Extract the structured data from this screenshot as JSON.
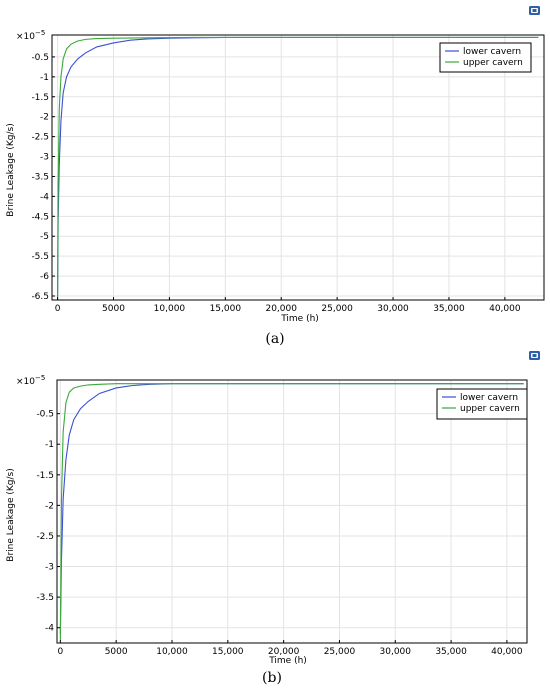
{
  "chart_data": [
    {
      "type": "line",
      "caption": "(a)",
      "xlabel": "Time (h)",
      "ylabel": "Brine Leakage (Kg/s)",
      "y_multiplier": "×10",
      "y_multiplier_exp": "−5",
      "xlim": [
        -500,
        43500
      ],
      "ylim": [
        -6.6,
        0.05
      ],
      "x_ticks": [
        0,
        5000,
        10000,
        15000,
        20000,
        25000,
        30000,
        35000,
        40000
      ],
      "x_tick_labels": [
        "0",
        "5000",
        "10,000",
        "15,000",
        "20,000",
        "25,000",
        "30,000",
        "35,000",
        "40,000"
      ],
      "y_ticks": [
        -0.5,
        -1,
        -1.5,
        -2,
        -2.5,
        -3,
        -3.5,
        -4,
        -4.5,
        -5,
        -5.5,
        -6,
        -6.5
      ],
      "y_tick_labels": [
        "-0.5",
        "-1",
        "-1.5",
        "-2",
        "-2.5",
        "-3",
        "-3.5",
        "-4",
        "-4.5",
        "-5",
        "-5.5",
        "-6",
        "-6.5"
      ],
      "grid": true,
      "legend_position": "top-right",
      "series": [
        {
          "name": "lower cavern",
          "color": "#3a4fd6",
          "x": [
            0,
            50,
            150,
            300,
            500,
            800,
            1200,
            1800,
            2500,
            3500,
            5000,
            6500,
            8000,
            10000,
            12000,
            15000,
            20000,
            30000,
            43000
          ],
          "y": [
            -6.5,
            -4.6,
            -3.2,
            -2.1,
            -1.4,
            -1.0,
            -0.75,
            -0.55,
            -0.4,
            -0.25,
            -0.15,
            -0.08,
            -0.05,
            -0.03,
            -0.02,
            -0.01,
            -0.01,
            -0.01,
            -0.01
          ]
        },
        {
          "name": "upper cavern",
          "color": "#3aa83a",
          "x": [
            0,
            50,
            150,
            300,
            500,
            800,
            1200,
            1800,
            2500,
            3500,
            5000,
            8000,
            12000,
            20000,
            30000,
            43000
          ],
          "y": [
            -6.6,
            -3.7,
            -1.8,
            -1.0,
            -0.55,
            -0.3,
            -0.18,
            -0.1,
            -0.06,
            -0.04,
            -0.03,
            -0.02,
            -0.01,
            -0.01,
            -0.01,
            -0.01
          ]
        }
      ]
    },
    {
      "type": "line",
      "caption": "(b)",
      "xlabel": "Time (h)",
      "ylabel": "Brine Leakage (Kg/s)",
      "y_multiplier": "×10",
      "y_multiplier_exp": "−5",
      "xlim": [
        -300,
        41800
      ],
      "ylim": [
        -4.25,
        0.05
      ],
      "x_ticks": [
        0,
        5000,
        10000,
        15000,
        20000,
        25000,
        30000,
        35000,
        40000
      ],
      "x_tick_labels": [
        "0",
        "5000",
        "10,000",
        "15,000",
        "20,000",
        "25,000",
        "30,000",
        "35,000",
        "40,000"
      ],
      "y_ticks": [
        -0.5,
        -1,
        -1.5,
        -2,
        -2.5,
        -3,
        -3.5,
        -4
      ],
      "y_tick_labels": [
        "-0.5",
        "-1",
        "-1.5",
        "-2",
        "-2.5",
        "-3",
        "-3.5",
        "-4"
      ],
      "grid": true,
      "legend_position": "top-right",
      "series": [
        {
          "name": "lower cavern",
          "color": "#3a4fd6",
          "x": [
            0,
            100,
            250,
            500,
            800,
            1200,
            1800,
            2500,
            3500,
            5000,
            6500,
            8000,
            10000,
            15000,
            20000,
            30000,
            41500
          ],
          "y": [
            -4.1,
            -2.9,
            -1.9,
            -1.25,
            -0.85,
            -0.6,
            -0.42,
            -0.3,
            -0.17,
            -0.08,
            -0.04,
            -0.02,
            -0.01,
            -0.01,
            -0.01,
            -0.01,
            -0.01
          ]
        },
        {
          "name": "upper cavern",
          "color": "#3aa83a",
          "x": [
            0,
            100,
            250,
            500,
            800,
            1200,
            1800,
            2500,
            3500,
            5000,
            8000,
            12000,
            20000,
            30000,
            41500
          ],
          "y": [
            -4.2,
            -1.9,
            -0.8,
            -0.32,
            -0.15,
            -0.08,
            -0.05,
            -0.03,
            -0.02,
            -0.01,
            -0.01,
            -0.01,
            -0.01,
            -0.01,
            -0.01
          ]
        }
      ]
    }
  ]
}
